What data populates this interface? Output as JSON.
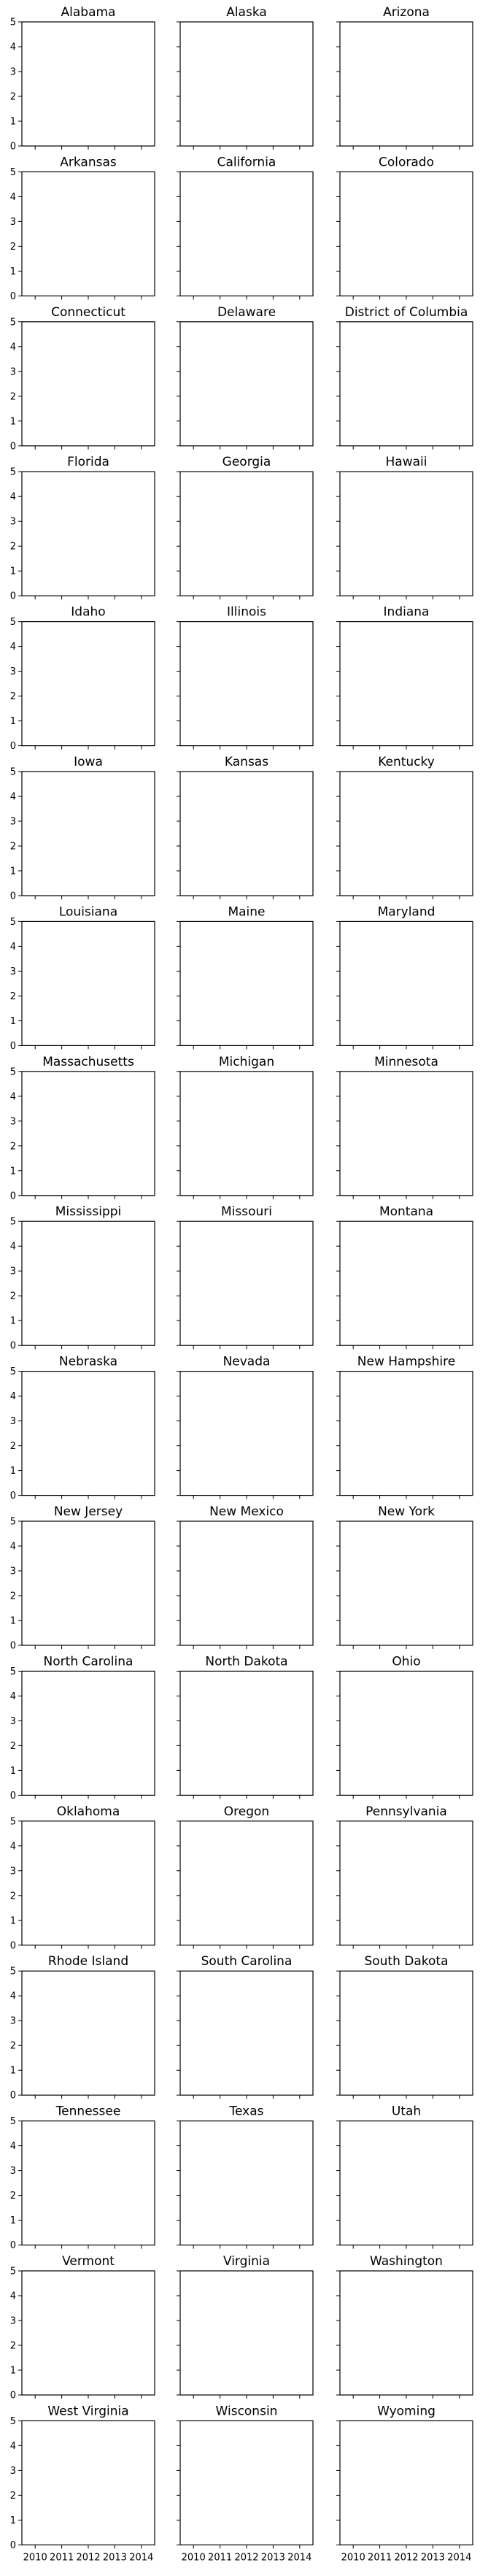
{
  "chart_data": {
    "type": "line",
    "layout": "small-multiples",
    "grid_columns": 3,
    "panels": [
      "Alabama",
      "Alaska",
      "Arizona",
      "Arkansas",
      "California",
      "Colorado",
      "Connecticut",
      "Delaware",
      "District of Columbia",
      "Florida",
      "Georgia",
      "Hawaii",
      "Idaho",
      "Illinois",
      "Indiana",
      "Iowa",
      "Kansas",
      "Kentucky",
      "Louisiana",
      "Maine",
      "Maryland",
      "Massachusetts",
      "Michigan",
      "Minnesota",
      "Mississippi",
      "Missouri",
      "Montana",
      "Nebraska",
      "Nevada",
      "New Hampshire",
      "New Jersey",
      "New Mexico",
      "New York",
      "North Carolina",
      "North Dakota",
      "Ohio",
      "Oklahoma",
      "Oregon",
      "Pennsylvania",
      "Rhode Island",
      "South Carolina",
      "South Dakota",
      "Tennessee",
      "Texas",
      "Utah",
      "Vermont",
      "Virginia",
      "Washington",
      "West Virginia",
      "Wisconsin",
      "Wyoming"
    ],
    "series": [],
    "ylim": [
      0,
      5
    ],
    "y_ticks": [
      0,
      1,
      2,
      3,
      4,
      5
    ],
    "xlim": [
      2009.5,
      2014.5
    ],
    "x_ticks": [
      2010,
      2011,
      2012,
      2013,
      2014
    ],
    "shared_y": true,
    "shared_x": true,
    "grid": false,
    "legend": "none"
  }
}
